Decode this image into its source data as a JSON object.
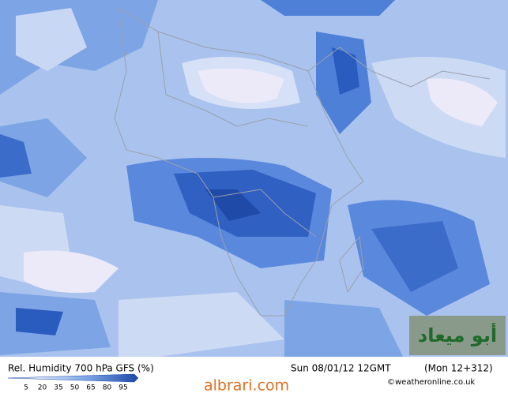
{
  "map": {
    "title": "Rel. Humidity 700 hPa GFS (%)",
    "valid_time": "Sun 08/01/12 12GMT",
    "run_info": "(Mon 12+312)",
    "legend": {
      "ticks": [
        5,
        20,
        35,
        50,
        65,
        80,
        95
      ]
    },
    "credit": "©weatheronline.co.uk",
    "watermark": "albrari.com",
    "logo": "أبو ميعاد"
  }
}
